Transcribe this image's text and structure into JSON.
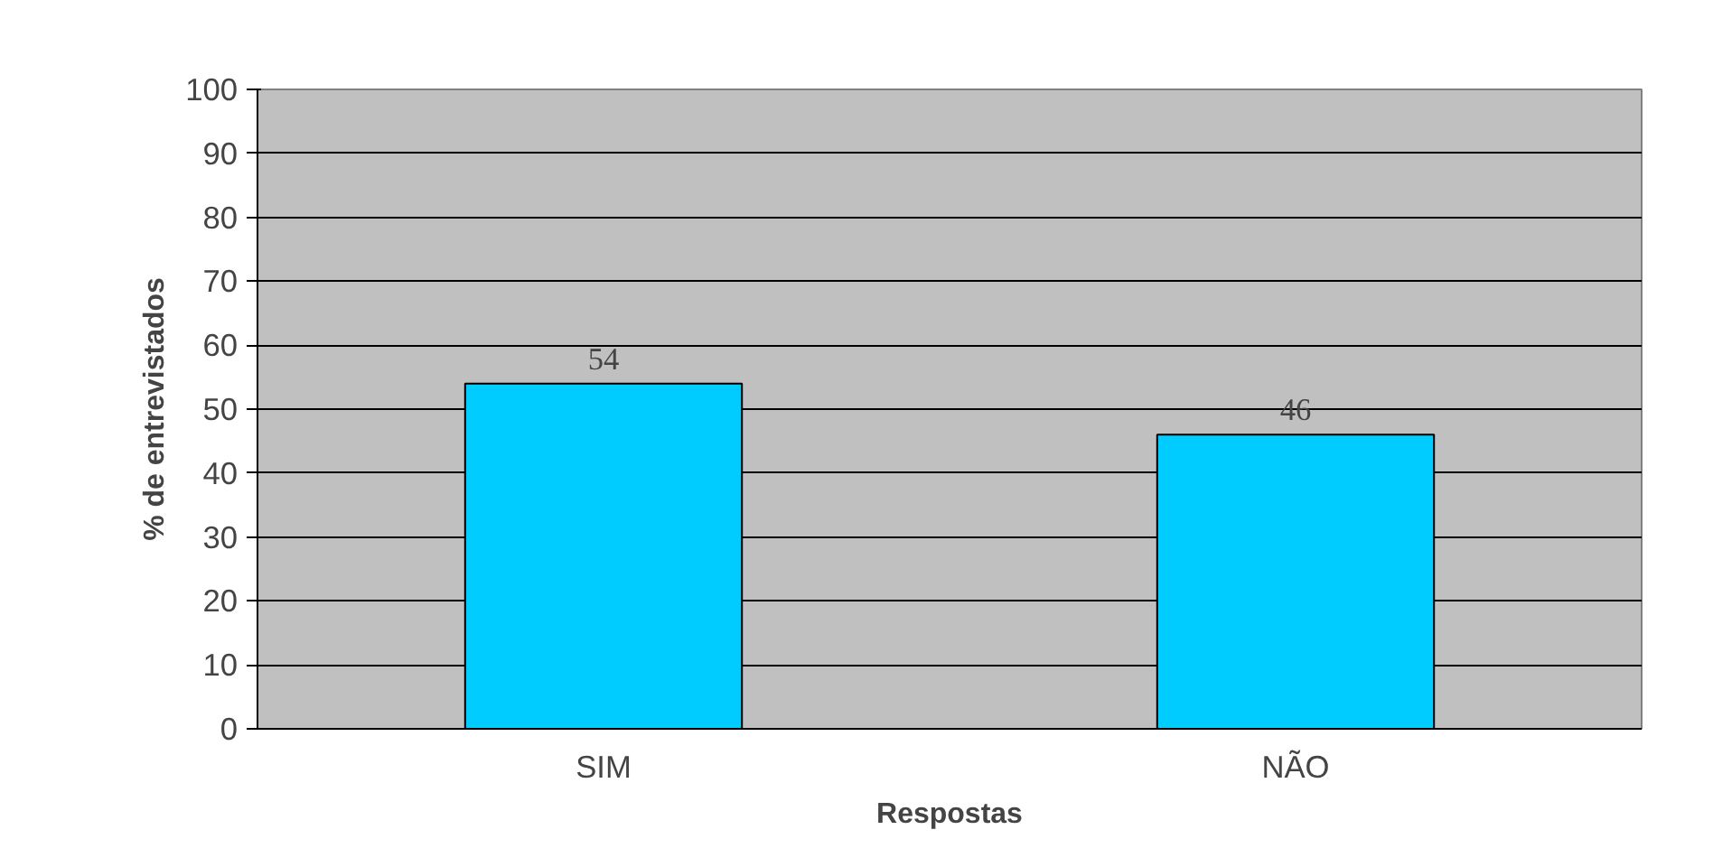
{
  "chart_data": {
    "type": "bar",
    "xlabel": "Respostas",
    "ylabel": "% de entrevistados",
    "categories": [
      "SIM",
      "NÃO"
    ],
    "values": [
      54,
      46
    ],
    "color": "#00ccff",
    "ylim": [
      0,
      100
    ],
    "yticks": [
      0,
      10,
      20,
      30,
      40,
      50,
      60,
      70,
      80,
      90,
      100
    ],
    "grid": "y",
    "data_labels": true
  }
}
